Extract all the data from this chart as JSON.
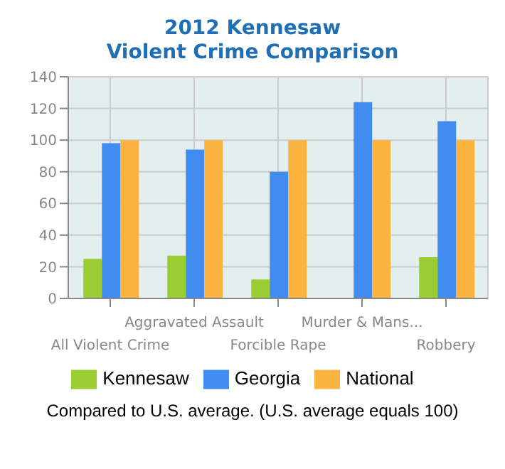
{
  "chart_data": {
    "type": "bar",
    "title": "2012 Kennesaw",
    "subtitle": "Violent Crime Comparison",
    "categories": [
      "All Violent Crime",
      "Aggravated Assault",
      "Forcible Rape",
      "Murder & Mans...",
      "Robbery"
    ],
    "series": [
      {
        "name": "Kennesaw",
        "color": "#9acd32",
        "values": [
          25,
          27,
          12,
          0,
          26
        ]
      },
      {
        "name": "Georgia",
        "color": "#418cf0",
        "values": [
          98,
          94,
          80,
          124,
          112
        ]
      },
      {
        "name": "National",
        "color": "#fcb441",
        "values": [
          100,
          100,
          100,
          100,
          100
        ]
      }
    ],
    "ylim": [
      0,
      140
    ],
    "yticks": [
      0,
      20,
      40,
      60,
      80,
      100,
      120,
      140
    ],
    "grid": true,
    "legend": "bottom",
    "annotations": [
      "Compared to U.S. average. (U.S. average equals 100)"
    ]
  }
}
